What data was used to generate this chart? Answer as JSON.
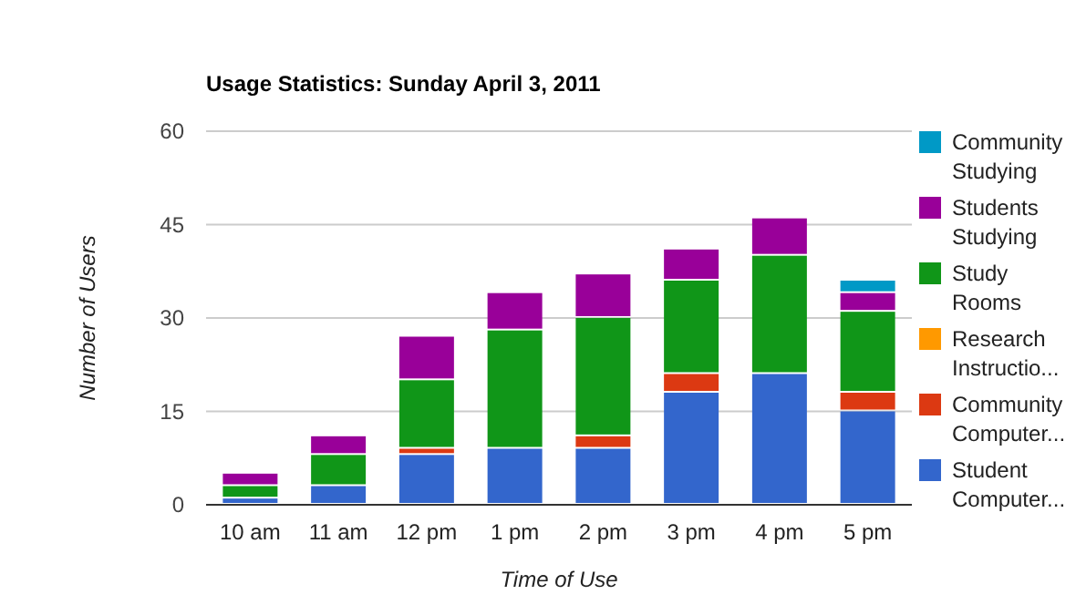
{
  "chart_data": {
    "type": "bar",
    "title": "Usage Statistics: Sunday April 3, 2011",
    "xlabel": "Time of Use",
    "ylabel": "Number of Users",
    "categories": [
      "10 am",
      "11 am",
      "12 pm",
      "1 pm",
      "2 pm",
      "3 pm",
      "4 pm",
      "5 pm"
    ],
    "stacked": true,
    "ylim": [
      0,
      60
    ],
    "yticks": [
      0,
      15,
      30,
      45,
      60
    ],
    "grid": "y",
    "legend": "right",
    "series": [
      {
        "name": "Student Computer...",
        "color": "#3366cc",
        "values": [
          1,
          3,
          8,
          9,
          9,
          18,
          21,
          15
        ]
      },
      {
        "name": "Community Computer...",
        "color": "#dc3912",
        "values": [
          0,
          0,
          1,
          0,
          2,
          3,
          0,
          3
        ]
      },
      {
        "name": "Research Instructio...",
        "color": "#ff9900",
        "values": [
          0,
          0,
          0,
          0,
          0,
          0,
          0,
          0
        ]
      },
      {
        "name": "Study Rooms",
        "color": "#109618",
        "values": [
          2,
          5,
          11,
          19,
          19,
          15,
          19,
          13
        ]
      },
      {
        "name": "Students Studying",
        "color": "#990099",
        "values": [
          2,
          3,
          7,
          6,
          7,
          5,
          6,
          3
        ]
      },
      {
        "name": "Community Studying",
        "color": "#0099c6",
        "values": [
          0,
          0,
          0,
          0,
          0,
          0,
          0,
          2
        ]
      }
    ]
  }
}
